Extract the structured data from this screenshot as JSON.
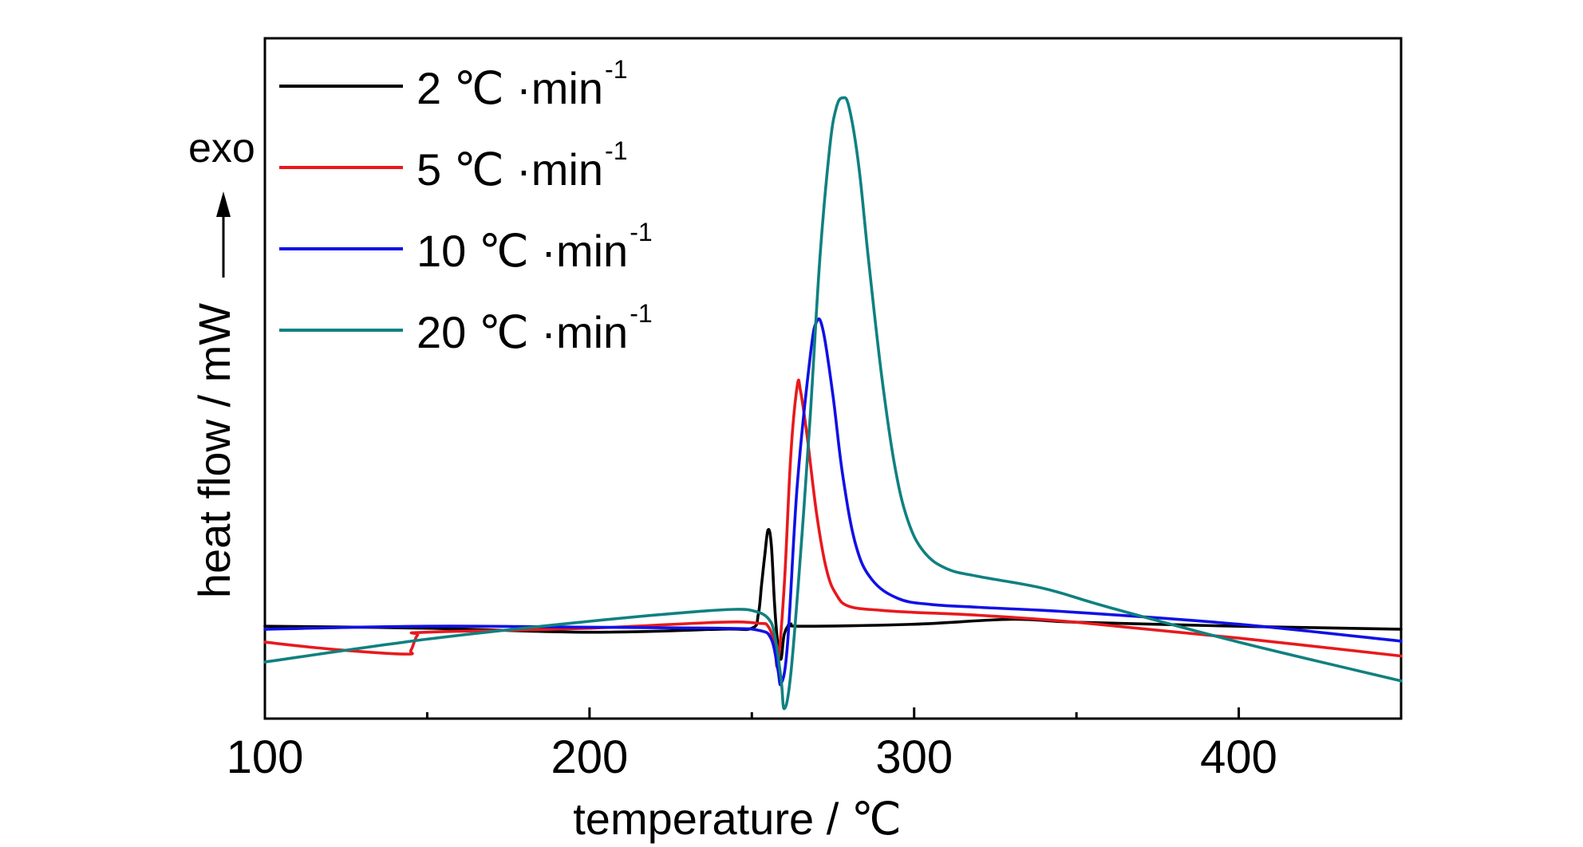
{
  "chart_data": {
    "type": "line",
    "xlabel": "temperature / ℃",
    "ylabel": "heat flow / mW",
    "exo_label": "exo",
    "xlim": [
      100,
      450
    ],
    "ylim": [
      -8.5,
      60
    ],
    "x_major_ticks": [
      100,
      200,
      300,
      400
    ],
    "x_minor_ticks": [
      150,
      250,
      350
    ],
    "y_tick_labels": false,
    "grid": false,
    "legend_position": "top-left",
    "series": [
      {
        "name": "2 ℃ ·min",
        "name_sup": "-1",
        "color": "#000000",
        "points": [
          [
            100,
            0.8
          ],
          [
            150,
            0.6
          ],
          [
            200,
            0.2
          ],
          [
            240,
            0.5
          ],
          [
            250,
            0.6
          ],
          [
            252,
            2.0
          ],
          [
            253,
            5.0
          ],
          [
            254,
            8.0
          ],
          [
            255,
            10.5
          ],
          [
            256,
            9.0
          ],
          [
            257,
            3.0
          ],
          [
            258,
            -1.0
          ],
          [
            259,
            -2.5
          ],
          [
            260,
            0.0
          ],
          [
            262,
            1.0
          ],
          [
            265,
            0.8
          ],
          [
            300,
            1.0
          ],
          [
            330,
            1.5
          ],
          [
            350,
            1.2
          ],
          [
            400,
            0.8
          ],
          [
            450,
            0.5
          ]
        ]
      },
      {
        "name": "5 ℃ ·min",
        "name_sup": "-1",
        "color": "#e8191d",
        "points": [
          [
            100,
            -0.8
          ],
          [
            120,
            -1.5
          ],
          [
            143,
            -2.0
          ],
          [
            145,
            -1.6
          ],
          [
            147,
            -0.1
          ],
          [
            150,
            0.2
          ],
          [
            200,
            0.6
          ],
          [
            240,
            1.2
          ],
          [
            252,
            1.1
          ],
          [
            255,
            0.8
          ],
          [
            257,
            -1.0
          ],
          [
            258,
            -3.0
          ],
          [
            260,
            5.0
          ],
          [
            262,
            18.0
          ],
          [
            264,
            25.0
          ],
          [
            265,
            24.5
          ],
          [
            267,
            20.0
          ],
          [
            270,
            12.0
          ],
          [
            273,
            6.5
          ],
          [
            276,
            4.0
          ],
          [
            280,
            2.8
          ],
          [
            290,
            2.4
          ],
          [
            300,
            2.2
          ],
          [
            320,
            1.9
          ],
          [
            350,
            1.2
          ],
          [
            400,
            -0.4
          ],
          [
            450,
            -2.2
          ]
        ]
      },
      {
        "name": "10 ℃ ·min",
        "name_sup": "-1",
        "color": "#1010e6",
        "points": [
          [
            100,
            0.5
          ],
          [
            150,
            0.8
          ],
          [
            200,
            0.7
          ],
          [
            240,
            0.6
          ],
          [
            252,
            0.4
          ],
          [
            256,
            -0.5
          ],
          [
            258,
            -3.5
          ],
          [
            259,
            -5.0
          ],
          [
            261,
            -1.0
          ],
          [
            264,
            15.0
          ],
          [
            268,
            28.0
          ],
          [
            270,
            31.5
          ],
          [
            272,
            30.5
          ],
          [
            275,
            24.0
          ],
          [
            278,
            16.0
          ],
          [
            282,
            9.0
          ],
          [
            287,
            5.5
          ],
          [
            295,
            3.6
          ],
          [
            305,
            3.0
          ],
          [
            320,
            2.7
          ],
          [
            350,
            2.2
          ],
          [
            400,
            1.0
          ],
          [
            450,
            -0.7
          ]
        ]
      },
      {
        "name": "20 ℃ ·min",
        "name_sup": "-1",
        "color": "#108080",
        "points": [
          [
            100,
            -2.8
          ],
          [
            150,
            -0.5
          ],
          [
            200,
            1.3
          ],
          [
            230,
            2.2
          ],
          [
            245,
            2.5
          ],
          [
            251,
            2.3
          ],
          [
            255,
            1.6
          ],
          [
            257,
            0.0
          ],
          [
            259,
            -4.5
          ],
          [
            260,
            -7.5
          ],
          [
            262,
            -4.0
          ],
          [
            265,
            8.0
          ],
          [
            268,
            22.0
          ],
          [
            271,
            38.0
          ],
          [
            274,
            49.0
          ],
          [
            276,
            53.0
          ],
          [
            278,
            54.0
          ],
          [
            280,
            53.0
          ],
          [
            283,
            47.0
          ],
          [
            286,
            37.5
          ],
          [
            290,
            26.0
          ],
          [
            294,
            17.0
          ],
          [
            298,
            11.5
          ],
          [
            303,
            8.3
          ],
          [
            310,
            6.6
          ],
          [
            320,
            5.8
          ],
          [
            340,
            4.6
          ],
          [
            360,
            2.7
          ],
          [
            400,
            -0.8
          ],
          [
            450,
            -4.7
          ]
        ]
      }
    ]
  }
}
